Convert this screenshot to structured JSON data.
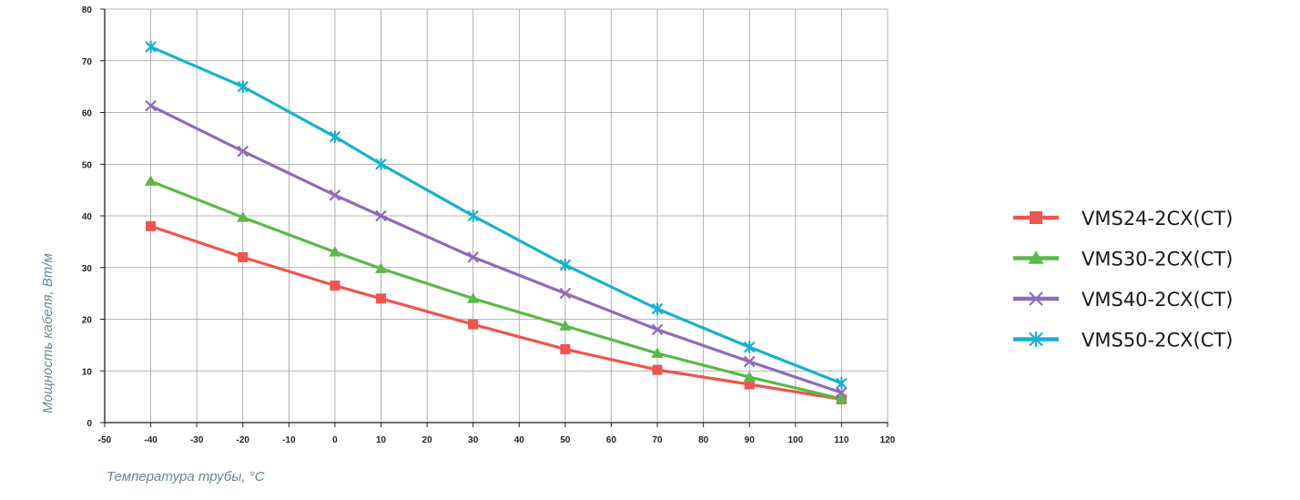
{
  "chart_data": {
    "type": "line",
    "xlabel": "Температура трубы, °C",
    "ylabel": "Мощность кабеля, Вт/м",
    "xlim": [
      -50,
      120
    ],
    "ylim": [
      0,
      80
    ],
    "x_ticks": [
      "-50",
      "-40",
      "-30",
      "-20",
      "-10",
      "0",
      "10",
      "20",
      "30",
      "40",
      "50",
      "60",
      "70",
      "80",
      "90",
      "100",
      "110",
      "120"
    ],
    "y_ticks": [
      "0",
      "10",
      "20",
      "30",
      "40",
      "50",
      "60",
      "70",
      "80"
    ],
    "grid": true,
    "legend_position": "right",
    "x": [
      -40,
      -20,
      0,
      10,
      30,
      50,
      70,
      90,
      110
    ],
    "series": [
      {
        "name": "VMS24-2CX(CT)",
        "color": "#f0544f",
        "marker": "square",
        "values": [
          38,
          32,
          26.5,
          24,
          19,
          14.2,
          10.2,
          7.4,
          4.5
        ]
      },
      {
        "name": "VMS30-2CX(CT)",
        "color": "#5cb848",
        "marker": "triangle",
        "values": [
          46.7,
          39.7,
          33,
          29.8,
          24,
          18.7,
          13.4,
          8.8,
          4.6
        ]
      },
      {
        "name": "VMS40-2CX(CT)",
        "color": "#8f6bb7",
        "marker": "x",
        "values": [
          61.3,
          52.5,
          44,
          40,
          32,
          25,
          18,
          11.8,
          5.8
        ]
      },
      {
        "name": "VMS50-2CX(CT)",
        "color": "#1ab0cc",
        "marker": "asterisk",
        "values": [
          72.7,
          65,
          55.3,
          50,
          40,
          30.5,
          22,
          14.6,
          7.6
        ]
      }
    ]
  }
}
